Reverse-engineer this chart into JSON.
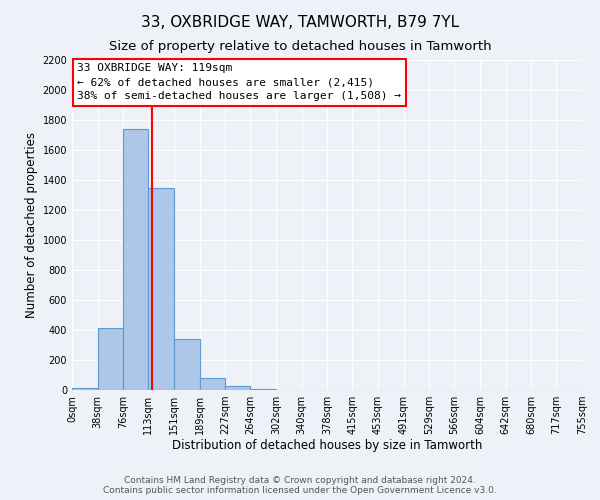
{
  "title": "33, OXBRIDGE WAY, TAMWORTH, B79 7YL",
  "subtitle": "Size of property relative to detached houses in Tamworth",
  "xlabel": "Distribution of detached houses by size in Tamworth",
  "ylabel": "Number of detached properties",
  "bin_edges": [
    0,
    38,
    76,
    113,
    151,
    189,
    227,
    264,
    302,
    340,
    378,
    415,
    453,
    491,
    529,
    566,
    604,
    642,
    680,
    717,
    755
  ],
  "bin_counts": [
    15,
    415,
    1740,
    1350,
    340,
    80,
    25,
    5,
    3,
    0,
    0,
    0,
    0,
    0,
    0,
    0,
    0,
    0,
    0,
    0
  ],
  "bar_color": "#aec6e8",
  "bar_edge_color": "#5b9bd5",
  "vline_x": 119,
  "vline_color": "red",
  "annotation_title": "33 OXBRIDGE WAY: 119sqm",
  "annotation_line1": "← 62% of detached houses are smaller (2,415)",
  "annotation_line2": "38% of semi-detached houses are larger (1,508) →",
  "annotation_box_color": "white",
  "annotation_box_edge": "red",
  "ylim": [
    0,
    2200
  ],
  "yticks": [
    0,
    200,
    400,
    600,
    800,
    1000,
    1200,
    1400,
    1600,
    1800,
    2000,
    2200
  ],
  "xtick_labels": [
    "0sqm",
    "38sqm",
    "76sqm",
    "113sqm",
    "151sqm",
    "189sqm",
    "227sqm",
    "264sqm",
    "302sqm",
    "340sqm",
    "378sqm",
    "415sqm",
    "453sqm",
    "491sqm",
    "529sqm",
    "566sqm",
    "604sqm",
    "642sqm",
    "680sqm",
    "717sqm",
    "755sqm"
  ],
  "footer_line1": "Contains HM Land Registry data © Crown copyright and database right 2024.",
  "footer_line2": "Contains public sector information licensed under the Open Government Licence v3.0.",
  "bg_color": "#eef2f8",
  "grid_color": "#ffffff",
  "title_fontsize": 11,
  "subtitle_fontsize": 9.5,
  "axis_label_fontsize": 8.5,
  "tick_fontsize": 7,
  "annotation_fontsize": 8,
  "footer_fontsize": 6.5
}
